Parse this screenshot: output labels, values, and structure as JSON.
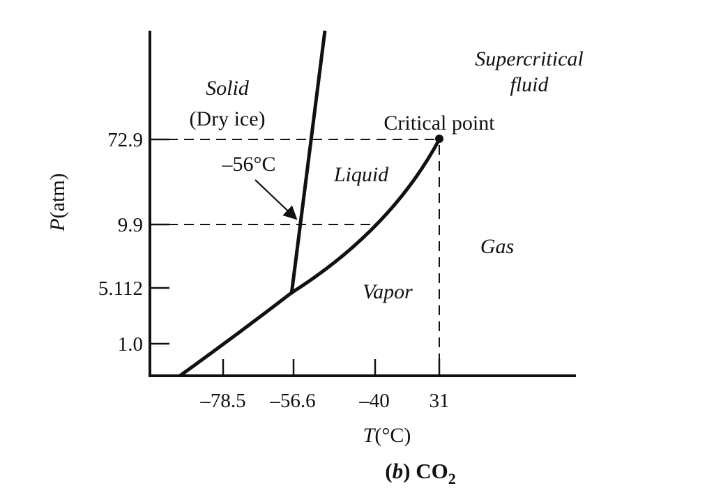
{
  "figure": {
    "y_axis_label_prefix": "P",
    "y_axis_label_suffix": "(atm)",
    "x_axis_label_prefix": "T",
    "x_axis_label_suffix": "(°C)",
    "caption_part": "(b)",
    "caption_letter": "b",
    "caption_formula_main": "CO",
    "caption_formula_sub": "2"
  },
  "y_ticks": [
    "72.9",
    "9.9",
    "5.112",
    "1.0"
  ],
  "x_ticks": [
    "–78.5",
    "–56.6",
    "–40",
    "31"
  ],
  "regions": {
    "solid": "Solid",
    "solid_sub": "(Dry ice)",
    "liquid": "Liquid",
    "vapor": "Vapor",
    "gas": "Gas",
    "supercritical_line1": "Supercritical",
    "supercritical_line2": "fluid"
  },
  "annotations": {
    "critical_point": "Critical point",
    "melting_temp": "–56°C"
  },
  "colors": {
    "ink": "#111111",
    "background": "#ffffff"
  }
}
